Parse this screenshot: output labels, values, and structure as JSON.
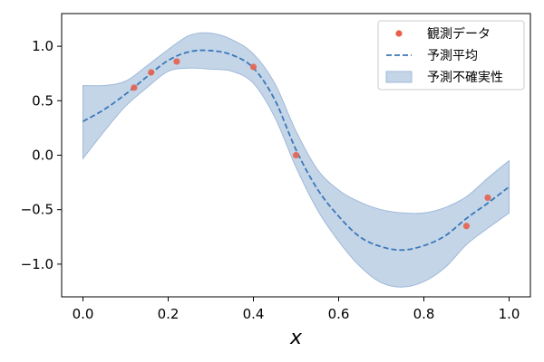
{
  "chart_data": {
    "type": "scatter",
    "title": "",
    "xlabel": "x",
    "ylabel": "",
    "xlim": [
      -0.05,
      1.05
    ],
    "ylim": [
      -1.3,
      1.3
    ],
    "xticks": [
      0.0,
      0.2,
      0.4,
      0.6,
      0.8,
      1.0
    ],
    "xtick_labels": [
      "0.0",
      "0.2",
      "0.4",
      "0.6",
      "0.8",
      "1.0"
    ],
    "yticks": [
      -1.0,
      -0.5,
      0.0,
      0.5,
      1.0
    ],
    "ytick_labels": [
      "−1.0",
      "−0.5",
      "0.0",
      "0.5",
      "1.0"
    ],
    "grid": false,
    "legend_position": "top-right",
    "series": [
      {
        "name": "観測データ",
        "kind": "scatter",
        "color": "#e8604c",
        "x": [
          0.12,
          0.16,
          0.22,
          0.4,
          0.5,
          0.9,
          0.95
        ],
        "y": [
          0.62,
          0.76,
          0.86,
          0.81,
          0.0,
          -0.65,
          -0.39
        ]
      },
      {
        "name": "予測平均",
        "kind": "line",
        "style": "dashed",
        "color": "#3b78b8",
        "x": [
          0.0,
          0.05,
          0.1,
          0.15,
          0.2,
          0.25,
          0.3,
          0.35,
          0.4,
          0.45,
          0.5,
          0.55,
          0.6,
          0.65,
          0.7,
          0.75,
          0.8,
          0.85,
          0.9,
          0.95,
          1.0
        ],
        "y": [
          0.31,
          0.42,
          0.56,
          0.72,
          0.87,
          0.95,
          0.96,
          0.92,
          0.8,
          0.51,
          0.05,
          -0.31,
          -0.56,
          -0.75,
          -0.84,
          -0.87,
          -0.83,
          -0.74,
          -0.58,
          -0.44,
          -0.29
        ]
      },
      {
        "name": "予測不確実性",
        "kind": "band",
        "color": "#b0c7e0",
        "edge_color": "#9fb9d8",
        "x": [
          0.0,
          0.05,
          0.1,
          0.15,
          0.2,
          0.25,
          0.3,
          0.35,
          0.4,
          0.45,
          0.5,
          0.55,
          0.6,
          0.65,
          0.7,
          0.75,
          0.8,
          0.85,
          0.9,
          0.95,
          1.0
        ],
        "upper": [
          0.64,
          0.64,
          0.68,
          0.82,
          0.97,
          1.1,
          1.12,
          1.06,
          0.93,
          0.66,
          0.22,
          -0.13,
          -0.32,
          -0.43,
          -0.5,
          -0.53,
          -0.53,
          -0.48,
          -0.38,
          -0.21,
          -0.05
        ],
        "lower": [
          -0.03,
          0.22,
          0.45,
          0.62,
          0.77,
          0.8,
          0.79,
          0.77,
          0.66,
          0.35,
          -0.11,
          -0.5,
          -0.79,
          -1.02,
          -1.17,
          -1.21,
          -1.16,
          -1.03,
          -0.82,
          -0.67,
          -0.53
        ]
      }
    ]
  }
}
